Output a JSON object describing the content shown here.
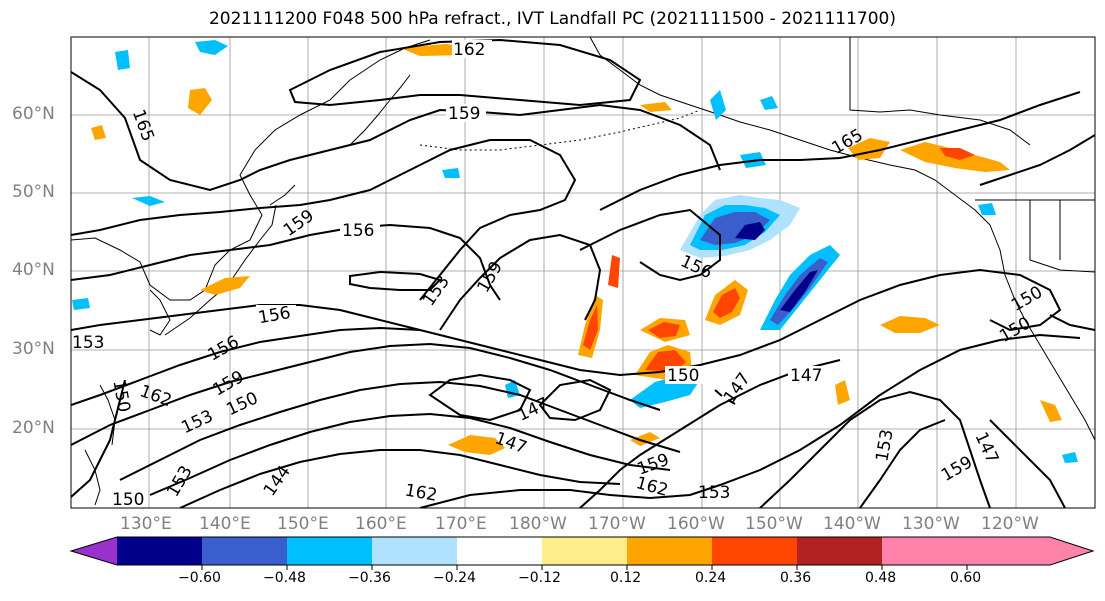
{
  "title": "2021111200 F048 500 hPa refract., IVT Landfall PC (2021111500 - 2021111700)",
  "lat_labels": [
    "60°N",
    "50°N",
    "40°N",
    "30°N",
    "20°N"
  ],
  "lon_labels": [
    "130°E",
    "140°E",
    "150°E",
    "160°E",
    "170°E",
    "180°W",
    "170°W",
    "160°W",
    "150°W",
    "140°W",
    "130°W",
    "120°W"
  ],
  "colorbar": {
    "colors": [
      "#9932cc",
      "#00008b",
      "#3a5fcd",
      "#00bfff",
      "#b0e2ff",
      "#ffffff",
      "#ffec8b",
      "#ffa500",
      "#ff4500",
      "#b22222",
      "#ff82ab"
    ],
    "ticks": [
      "−0.60",
      "−0.48",
      "−0.36",
      "−0.24",
      "−0.12",
      "0.12",
      "0.24",
      "0.36",
      "0.48",
      "0.60"
    ]
  },
  "contour_labels": [
    "162",
    "159",
    "165",
    "165",
    "159",
    "156",
    "153",
    "159",
    "156",
    "156",
    "150",
    "150",
    "156",
    "159",
    "153",
    "162",
    "150",
    "153",
    "150",
    "147",
    "147",
    "150",
    "147",
    "153",
    "147",
    "162",
    "159",
    "162",
    "144",
    "153",
    "147",
    "159",
    "150",
    "153"
  ]
}
